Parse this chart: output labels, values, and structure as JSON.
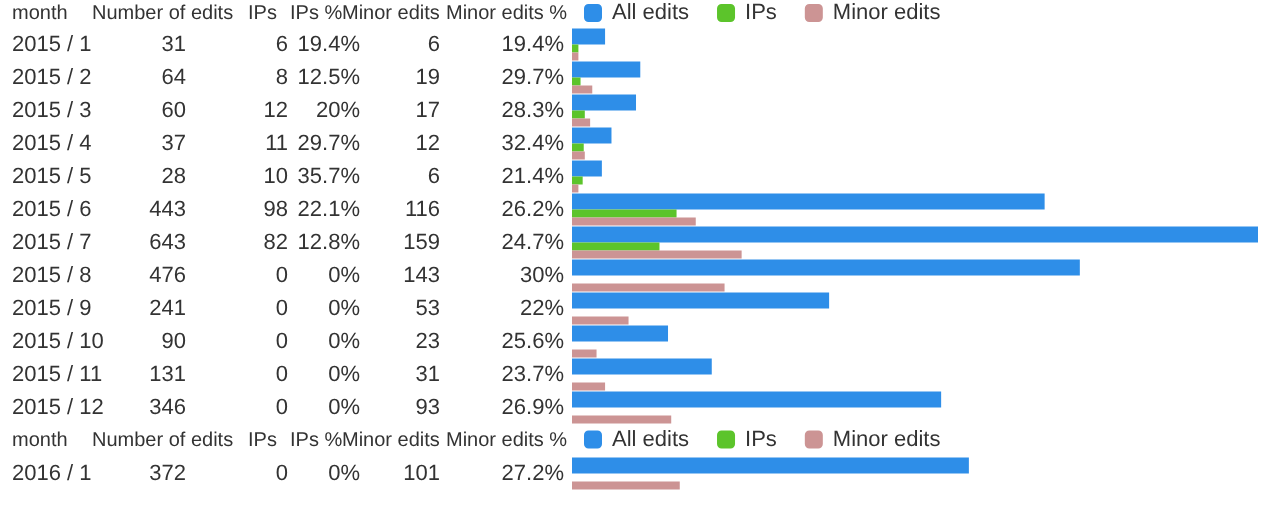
{
  "chart_data": {
    "type": "bar",
    "orientation": "horizontal",
    "ylabel": "month",
    "categories": [
      "2015 / 1",
      "2015 / 2",
      "2015 / 3",
      "2015 / 4",
      "2015 / 5",
      "2015 / 6",
      "2015 / 7",
      "2015 / 8",
      "2015 / 9",
      "2015 / 10",
      "2015 / 11",
      "2015 / 12",
      null,
      "2016 / 1"
    ],
    "series": [
      {
        "name": "All edits",
        "color": "#2e8ee8",
        "values": [
          31,
          64,
          60,
          37,
          28,
          443,
          643,
          476,
          241,
          90,
          131,
          346,
          null,
          372
        ]
      },
      {
        "name": "IPs",
        "color": "#5cc42b",
        "values": [
          6,
          8,
          12,
          11,
          10,
          98,
          82,
          0,
          0,
          0,
          0,
          0,
          null,
          0
        ]
      },
      {
        "name": "Minor edits",
        "color": "#cc9494",
        "values": [
          6,
          19,
          17,
          12,
          6,
          116,
          159,
          143,
          53,
          23,
          31,
          93,
          null,
          101
        ]
      }
    ],
    "tick_labels": "y",
    "legend": "top",
    "data_labels": true,
    "annotations": [
      "Number of edits",
      "IPs",
      "IPs %",
      "Minor edits",
      "Minor edits %",
      "Number of edits",
      "IPs",
      "IPs %",
      "Minor edits",
      "Minor edits %",
      "19.4%",
      "19.4%",
      "12.5%",
      "29.7%",
      "20%",
      "28.3%",
      "29.7%",
      "32.4%",
      "35.7%",
      "21.4%",
      "22.1%",
      "26.2%",
      "12.8%",
      "24.7%",
      "0%",
      "30%",
      "0%",
      "22%",
      "0%",
      "25.6%",
      "0%",
      "23.7%",
      "0%",
      "26.9%",
      "0%",
      "27.2%"
    ]
  }
}
